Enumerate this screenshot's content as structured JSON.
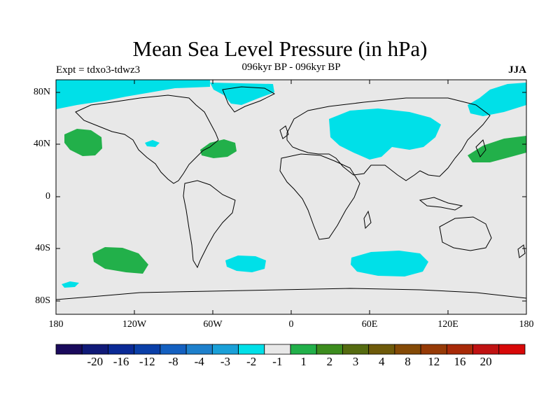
{
  "title": "Mean Sea Level Pressure (in hPa)",
  "expt": "Expt = tdxo3-tdwz3",
  "subtitle": "096kyr BP - 096kyr BP",
  "season": "JJA",
  "lat_labels": [
    "80N",
    "40N",
    "0",
    "40S",
    "80S"
  ],
  "lon_labels": [
    "180",
    "120W",
    "60W",
    "0",
    "60E",
    "120E",
    "180"
  ],
  "colorbar": {
    "colors": [
      "#1a0a5c",
      "#101a78",
      "#0a2a96",
      "#0a3fa8",
      "#1460c0",
      "#1e80cc",
      "#1aa0d8",
      "#00e0e8",
      "#e8e8e8",
      "#22b04a",
      "#3c8c1e",
      "#556b10",
      "#6e5a0a",
      "#844a06",
      "#963a06",
      "#a82a08",
      "#c01212",
      "#d80808"
    ],
    "labels": [
      "-20",
      "-16",
      "-12",
      "-8",
      "-4",
      "-3",
      "-2",
      "-1",
      "1",
      "2",
      "3",
      "4",
      "8",
      "12",
      "16",
      "20"
    ]
  },
  "colors": {
    "background_fill": "#e8e8e8",
    "negative_anomaly": "#00e0e8",
    "positive_anomaly": "#22b04a"
  }
}
